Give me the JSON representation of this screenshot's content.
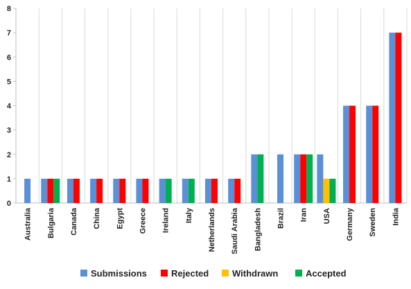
{
  "chart_data": {
    "type": "bar",
    "categories": [
      "Australia",
      "Bulgaria",
      "Canada",
      "China",
      "Egypt",
      "Greece",
      "Ireland",
      "Italy",
      "Netherlands",
      "Saudi Arabia",
      "Bangladesh",
      "Brazil",
      "Iran",
      "USA",
      "Germany",
      "Sweden",
      "India"
    ],
    "series": [
      {
        "name": "Submissions",
        "color": "#5b8fd6",
        "values": [
          1,
          1,
          1,
          1,
          1,
          1,
          1,
          1,
          1,
          1,
          2,
          2,
          2,
          2,
          4,
          4,
          7
        ]
      },
      {
        "name": "Rejected",
        "color": "#ff0000",
        "values": [
          0,
          1,
          1,
          1,
          1,
          1,
          0,
          0,
          1,
          1,
          0,
          0,
          2,
          0,
          4,
          4,
          7
        ]
      },
      {
        "name": "Withdrawn",
        "color": "#ffc000",
        "values": [
          0,
          0,
          0,
          0,
          0,
          0,
          0,
          0,
          0,
          0,
          0,
          0,
          0,
          1,
          0,
          0,
          0
        ]
      },
      {
        "name": "Accepted",
        "color": "#00b050",
        "values": [
          0,
          1,
          0,
          0,
          0,
          0,
          1,
          1,
          0,
          0,
          2,
          0,
          2,
          1,
          0,
          0,
          0
        ]
      }
    ],
    "yticks": [
      "0",
      "1",
      "2",
      "3",
      "4",
      "5",
      "6",
      "7",
      "8"
    ],
    "ylim": [
      0,
      8
    ],
    "grid": "vertical",
    "legend": "bottom"
  }
}
